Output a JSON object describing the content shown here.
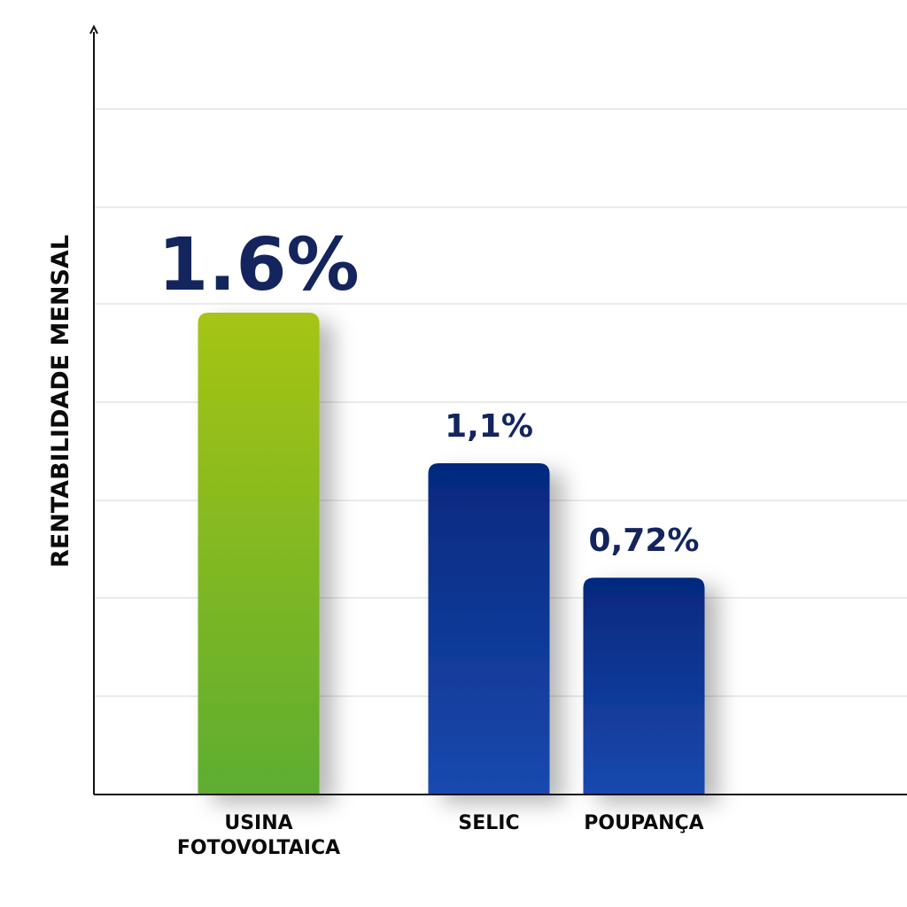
{
  "chart_data": {
    "type": "bar",
    "ylabel": "RENTABILIDADE MENSAL",
    "xlabel": "",
    "title": "",
    "categories": [
      [
        "USINA",
        "FOTOVOLTAICA"
      ],
      [
        "SELIC"
      ],
      [
        "POUPANÇA"
      ]
    ],
    "values": [
      1.6,
      1.1,
      0.72
    ],
    "value_labels": [
      "1.6%",
      "1,1%",
      "0,72%"
    ],
    "ylim": [
      0,
      2.35
    ],
    "grid": true,
    "legend": "none",
    "colors": {
      "highlight_top": "#a6c414",
      "highlight_bottom": "#5ead31",
      "bar_top": "#05287e",
      "bar_bottom": "#1a49ae",
      "value_text": "#14255e",
      "axis": "#111111",
      "grid": "#d6d6d6"
    }
  }
}
